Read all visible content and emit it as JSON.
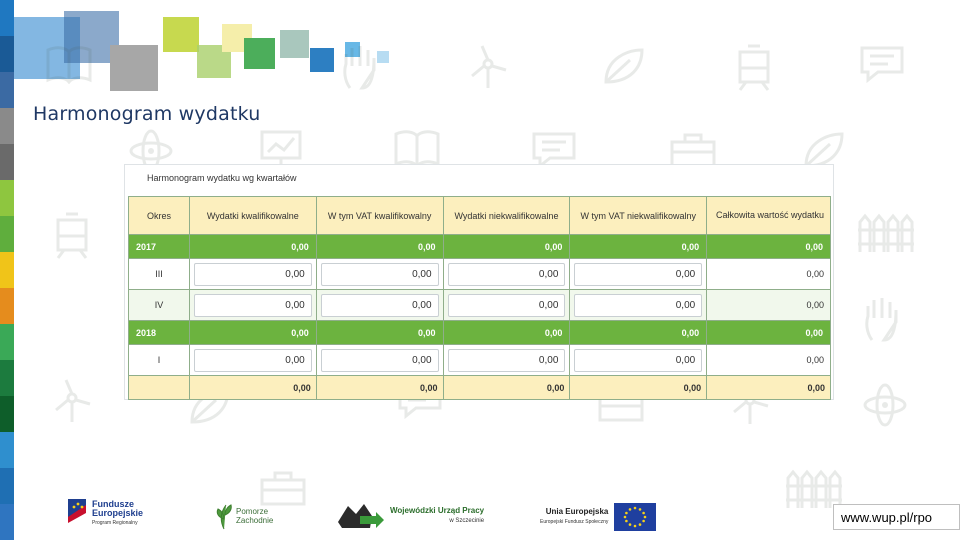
{
  "slide": {
    "title": "Harmonogram wydatku",
    "stripe_colors": [
      "#1f78c1",
      "#1a5a96",
      "#3b6aa3",
      "#8a8a8a",
      "#6a6a6a",
      "#8ec63f",
      "#5fae3d",
      "#f0c419",
      "#e58c1d",
      "#3aa957",
      "#1c7b3e",
      "#0e5e2a",
      "#2f8fce",
      "#1f6fb3",
      "#2f75c0"
    ],
    "squares": {
      "blue_large": "#5a9fd8",
      "grey_large": "#a7a7a7",
      "lime": "#c7d94f",
      "yellow_pale": "#f5eeaa",
      "green": "#4cae5b",
      "teal_pale": "#a9c7bd",
      "blue": "#2d7fc2",
      "sky": "#68b8e6",
      "pale_blue": "#b7dcf2"
    }
  },
  "panel": {
    "title": "Harmonogram wydatku wg kwartałów",
    "headers": [
      "Okres",
      "Wydatki kwalifikowalne",
      "W tym VAT kwalifikowalny",
      "Wydatki niekwalifikowalne",
      "W tym VAT niekwalifikowalny",
      "Całkowita wartość wydatku"
    ],
    "years": [
      {
        "okres": "2017",
        "values": [
          "0,00",
          "0,00",
          "0,00",
          "0,00",
          "0,00"
        ],
        "quarters": [
          {
            "okres": "III",
            "inputs": [
              "0,00",
              "0,00",
              "0,00",
              "0,00"
            ],
            "total": "0,00"
          },
          {
            "okres": "IV",
            "inputs": [
              "0,00",
              "0,00",
              "0,00",
              "0,00"
            ],
            "total": "0,00"
          }
        ]
      },
      {
        "okres": "2018",
        "values": [
          "0,00",
          "0,00",
          "0,00",
          "0,00",
          "0,00"
        ],
        "quarters": [
          {
            "okres": "I",
            "inputs": [
              "0,00",
              "0,00",
              "0,00",
              "0,00"
            ],
            "total": "0,00"
          }
        ]
      }
    ],
    "sum_row": [
      "0,00",
      "0,00",
      "0,00",
      "0,00",
      "0,00"
    ]
  },
  "footer": {
    "logo_fe": {
      "line1": "Fundusze",
      "line2": "Europejskie",
      "line3": "Program Regionalny"
    },
    "logo_pz": {
      "line1": "Pomorze",
      "line2": "Zachodnie"
    },
    "logo_wup": {
      "line1": "Wojewódzki Urząd Pracy",
      "line2": "w Szczecinie"
    },
    "logo_ue": {
      "line1": "Unia Europejska",
      "line2": "Europejski Fundusz Społeczny"
    },
    "url": "www.wup.pl/rpo"
  }
}
